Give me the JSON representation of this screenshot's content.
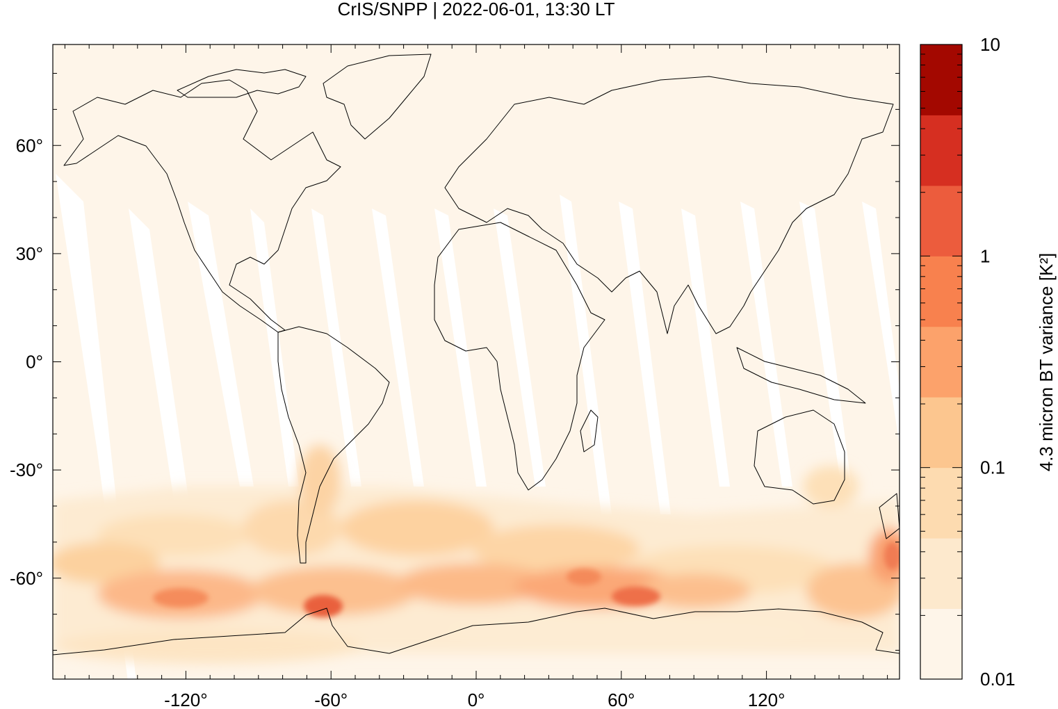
{
  "title": "CrIS/SNPP | 2022-06-01, 13:30 LT",
  "map": {
    "lon_range": [
      -175,
      175
    ],
    "lat_range": [
      -88,
      88
    ],
    "x_ticks": [
      {
        "value": -120,
        "label": "-120°"
      },
      {
        "value": -60,
        "label": "-60°"
      },
      {
        "value": 0,
        "label": "0°"
      },
      {
        "value": 60,
        "label": "60°"
      },
      {
        "value": 120,
        "label": "120°"
      }
    ],
    "y_ticks": [
      {
        "value": 60,
        "label": "60°"
      },
      {
        "value": 30,
        "label": "30°"
      },
      {
        "value": 0,
        "label": "0°"
      },
      {
        "value": -30,
        "label": "-30°"
      },
      {
        "value": -60,
        "label": "-60°"
      }
    ]
  },
  "colorbar": {
    "label": "4.3 micron BT variance [K²]",
    "scale": "log",
    "range": [
      0.01,
      10
    ],
    "tick_labels": [
      {
        "value": 10,
        "label": "10"
      },
      {
        "value": 1,
        "label": "1"
      },
      {
        "value": 0.1,
        "label": "0.1"
      },
      {
        "value": 0.01,
        "label": "0.01"
      }
    ],
    "colors": [
      "#fef5e9",
      "#fde9cd",
      "#fddbb0",
      "#fcc68f",
      "#fca26b",
      "#f8814e",
      "#ec5c3d",
      "#d62f21",
      "#a30800"
    ]
  }
}
